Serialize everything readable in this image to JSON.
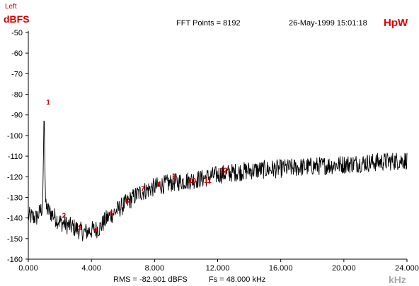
{
  "header": {
    "channel": "Left",
    "unit_label": "dBFS",
    "fft_points": "FFT Points = 8192",
    "timestamp": "26-May-1999 15:01:18",
    "brand": "HpW"
  },
  "footer": {
    "rms": "RMS = -82.901 dBFS",
    "fs": "Fs = 48.000 kHz",
    "x_unit": "kHz"
  },
  "colors": {
    "trace": "#000000",
    "markers": "#d00000",
    "brand": "#e00000",
    "axis_unit": "#a8a8a8"
  },
  "chart_data": {
    "type": "line",
    "title": "",
    "xlabel": "kHz",
    "ylabel": "dBFS",
    "xlim": [
      0,
      24
    ],
    "ylim": [
      -160,
      -50
    ],
    "x_tick_values": [
      0,
      4,
      8,
      12,
      16,
      20,
      24
    ],
    "x_tick_labels": [
      "0.000",
      "4.000",
      "8.000",
      "12.000",
      "16.000",
      "20.000",
      "24.000"
    ],
    "y_tick_values": [
      -50,
      -60,
      -70,
      -80,
      -90,
      -100,
      -110,
      -120,
      -130,
      -140,
      -150,
      -160
    ],
    "y_tick_labels": [
      "-50",
      "-60",
      "-70",
      "-80",
      "-90",
      "-100",
      "-110",
      "-120",
      "-130",
      "-140",
      "-150",
      "-160"
    ],
    "grid": false,
    "series": [
      {
        "envelope_x": [
          0,
          0.5,
          0.9,
          0.95,
          1.0,
          1.05,
          1.1,
          2,
          3,
          3.5,
          4,
          4.5,
          5,
          6,
          7,
          8,
          9,
          10,
          11,
          12,
          14,
          16,
          18,
          20,
          22,
          24
        ],
        "envelope_y": [
          -139,
          -140,
          -135,
          -115,
          -85,
          -115,
          -135,
          -142,
          -145,
          -147,
          -146,
          -145,
          -140,
          -134,
          -128,
          -125,
          -123,
          -122,
          -121,
          -119,
          -117,
          -116,
          -115,
          -114,
          -113,
          -112
        ]
      }
    ],
    "harmonic_markers": [
      {
        "label": "1",
        "x": 1.0,
        "y": -85
      },
      {
        "label": "2",
        "x": 2.0,
        "y": -140
      },
      {
        "label": "3",
        "x": 3.0,
        "y": -146
      },
      {
        "label": "4",
        "x": 4.0,
        "y": -147
      },
      {
        "label": "5",
        "x": 5.0,
        "y": -139
      },
      {
        "label": "6",
        "x": 6.0,
        "y": -133
      },
      {
        "label": "7",
        "x": 7.0,
        "y": -127
      },
      {
        "label": "8",
        "x": 8.0,
        "y": -125
      },
      {
        "label": "9",
        "x": 9.0,
        "y": -121
      },
      {
        "label": "10",
        "x": 10.0,
        "y": -123
      },
      {
        "label": "11",
        "x": 11.0,
        "y": -123
      },
      {
        "label": "12",
        "x": 12.0,
        "y": -118
      }
    ]
  }
}
